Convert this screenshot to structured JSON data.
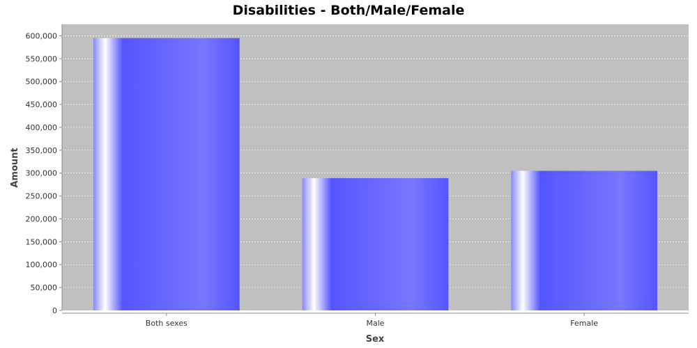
{
  "chart_data": {
    "type": "bar",
    "title": "Disabilities - Both/Male/Female",
    "xlabel": "Sex",
    "ylabel": "Amount",
    "categories": [
      "Both sexes",
      "Male",
      "Female"
    ],
    "values": [
      595000,
      289000,
      305000
    ],
    "ylim": [
      0,
      625000
    ],
    "yticks": [
      0,
      50000,
      100000,
      150000,
      200000,
      250000,
      300000,
      350000,
      400000,
      450000,
      500000,
      550000,
      600000
    ],
    "ytick_labels": [
      "0",
      "50,000",
      "100,000",
      "150,000",
      "200,000",
      "250,000",
      "300,000",
      "350,000",
      "400,000",
      "450,000",
      "500,000",
      "550,000",
      "600,000"
    ],
    "grid": true,
    "legend": "none",
    "colors": {
      "plot_background": "#c0c0c0",
      "gridline": "#ffffff",
      "bar": "#5555ff",
      "bar_highlight": "#ffffff",
      "axis": "#888888"
    }
  }
}
